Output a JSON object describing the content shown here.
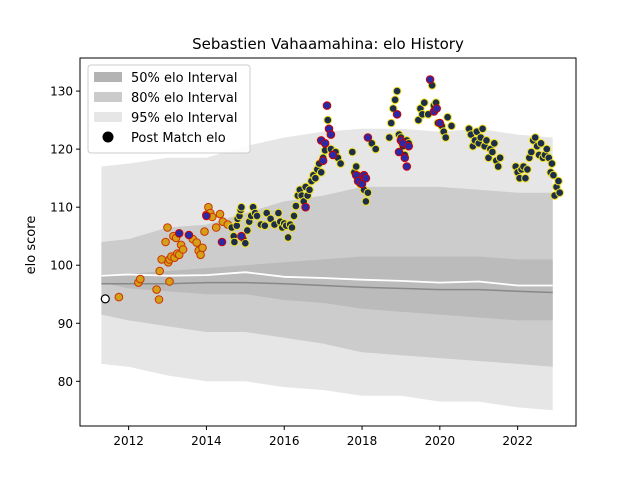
{
  "chart_data": {
    "type": "scatter",
    "title": "Sebastien Vahaamahina: elo History",
    "xlabel": "",
    "ylabel": "elo score",
    "xlim": [
      2010.75,
      2023.5
    ],
    "ylim": [
      72.3,
      135.7
    ],
    "xticks": [
      2012,
      2014,
      2016,
      2018,
      2020,
      2022
    ],
    "yticks": [
      80,
      90,
      100,
      110,
      120,
      130
    ],
    "grid": false,
    "legend": {
      "placement": "top-left",
      "entries": [
        {
          "label": "50% elo Interval",
          "color": "#b3b3b3"
        },
        {
          "label": "80% elo Interval",
          "color": "#cbcbcb"
        },
        {
          "label": "95% elo Interval",
          "color": "#e6e6e6"
        },
        {
          "label": "Post Match elo",
          "color": "#000000"
        }
      ]
    },
    "colors": {
      "band95": "#e6e6e6",
      "band80": "#cccccc",
      "band50": "#bbbbbb",
      "median_line": "#888888",
      "mean_line": "#ffffff",
      "point_fill_early": "#d4a017",
      "point_edge_early": "#cc3300",
      "point_fill_dark": "#1c2e4a",
      "point_edge_yellow": "#f0e020",
      "point_edge_red": "#cc0000",
      "point_fill_blue": "#2a2aa8",
      "first_point_fill": "#ffffff"
    },
    "bands": {
      "x": [
        2011.3,
        2012.0,
        2013.0,
        2014.0,
        2015.0,
        2016.0,
        2017.0,
        2018.0,
        2019.0,
        2020.0,
        2021.0,
        2022.0,
        2022.9
      ],
      "p95_upper": [
        117.0,
        117.5,
        118.5,
        118.5,
        120.5,
        122.0,
        123.0,
        123.5,
        123.5,
        123.0,
        123.5,
        122.5,
        122.0
      ],
      "p95_lower": [
        83.0,
        82.5,
        81.0,
        80.0,
        80.0,
        79.0,
        78.5,
        77.5,
        77.5,
        76.5,
        76.5,
        75.5,
        75.0
      ],
      "p80_upper": [
        104.0,
        104.5,
        106.5,
        107.0,
        109.0,
        111.0,
        112.0,
        113.5,
        113.5,
        113.5,
        113.0,
        112.5,
        112.5
      ],
      "p80_lower": [
        91.5,
        90.5,
        89.5,
        88.5,
        88.5,
        87.5,
        86.5,
        85.0,
        84.5,
        84.0,
        83.5,
        83.0,
        82.5
      ],
      "p50_upper": [
        98.5,
        98.5,
        99.0,
        99.5,
        100.0,
        100.5,
        101.0,
        101.5,
        101.5,
        101.5,
        101.5,
        101.0,
        101.0
      ],
      "p50_lower": [
        97.0,
        96.0,
        95.5,
        95.0,
        95.0,
        94.0,
        93.5,
        92.5,
        92.0,
        91.5,
        91.0,
        90.5,
        90.5
      ],
      "median": [
        96.8,
        96.8,
        96.8,
        97.0,
        97.0,
        96.8,
        96.5,
        96.2,
        96.0,
        95.8,
        95.8,
        95.5,
        95.3
      ],
      "mean": [
        98.2,
        98.4,
        98.2,
        98.3,
        98.8,
        98.0,
        97.8,
        97.5,
        97.3,
        97.0,
        97.2,
        96.5,
        96.5
      ]
    },
    "first_point": {
      "x": 2011.4,
      "y": 94.2
    },
    "series": [
      {
        "group": "early",
        "points": [
          [
            2011.75,
            94.5
          ],
          [
            2012.25,
            97.0
          ],
          [
            2012.3,
            97.6
          ],
          [
            2012.72,
            95.8
          ],
          [
            2012.78,
            94.1
          ],
          [
            2012.8,
            99.0
          ],
          [
            2012.85,
            101.0
          ],
          [
            2012.95,
            104.0
          ],
          [
            2013.0,
            106.5
          ],
          [
            2013.02,
            100.5
          ],
          [
            2013.05,
            101.0
          ],
          [
            2013.1,
            101.5
          ],
          [
            2013.15,
            105.0
          ],
          [
            2013.18,
            101.3
          ],
          [
            2013.22,
            104.7
          ],
          [
            2013.25,
            102.0
          ],
          [
            2013.3,
            101.8
          ],
          [
            2013.35,
            103.5
          ],
          [
            2013.05,
            97.2
          ],
          [
            2013.4,
            102.7
          ],
          [
            2013.65,
            104.5
          ],
          [
            2013.75,
            103.9
          ],
          [
            2013.8,
            102.5
          ],
          [
            2013.85,
            101.8
          ],
          [
            2013.9,
            103.0
          ],
          [
            2013.95,
            105.8
          ],
          [
            2014.0,
            108.7
          ],
          [
            2014.05,
            110.0
          ],
          [
            2014.1,
            109.0
          ],
          [
            2014.15,
            108.3
          ],
          [
            2014.25,
            106.5
          ],
          [
            2014.35,
            108.8
          ],
          [
            2014.42,
            107.5
          ],
          [
            2014.55,
            107.0
          ]
        ]
      },
      {
        "group": "mid_dark",
        "points": [
          [
            2014.65,
            106.5
          ],
          [
            2014.7,
            105.0
          ],
          [
            2014.72,
            104.0
          ],
          [
            2014.78,
            106.8
          ],
          [
            2014.8,
            108.0
          ],
          [
            2014.85,
            108.5
          ],
          [
            2014.88,
            109.5
          ],
          [
            2014.9,
            110.0
          ],
          [
            2014.95,
            104.5
          ],
          [
            2015.0,
            103.8
          ],
          [
            2015.05,
            106.0
          ],
          [
            2015.1,
            107.5
          ],
          [
            2015.15,
            108.5
          ],
          [
            2015.2,
            110.0
          ],
          [
            2015.25,
            109.0
          ],
          [
            2015.3,
            108.5
          ],
          [
            2015.4,
            107.0
          ],
          [
            2015.5,
            106.8
          ],
          [
            2015.55,
            109.0
          ],
          [
            2015.65,
            108.0
          ],
          [
            2015.75,
            107.0
          ],
          [
            2015.85,
            109.0
          ],
          [
            2015.9,
            107.5
          ],
          [
            2015.95,
            106.5
          ],
          [
            2016.0,
            107.2
          ],
          [
            2016.05,
            106.8
          ],
          [
            2016.1,
            104.8
          ],
          [
            2016.15,
            107.0
          ],
          [
            2016.2,
            106.5
          ],
          [
            2016.25,
            108.5
          ],
          [
            2016.3,
            110.2
          ],
          [
            2016.35,
            112.0
          ],
          [
            2016.4,
            113.0
          ],
          [
            2016.45,
            112.0
          ],
          [
            2016.5,
            111.0
          ],
          [
            2016.55,
            113.5
          ],
          [
            2016.6,
            112.0
          ],
          [
            2016.65,
            113.0
          ],
          [
            2016.7,
            114.5
          ],
          [
            2016.75,
            115.5
          ],
          [
            2016.8,
            115.0
          ],
          [
            2016.85,
            116.5
          ],
          [
            2016.9,
            117.5
          ],
          [
            2016.95,
            116.0
          ],
          [
            2017.0,
            118.5
          ],
          [
            2017.05,
            119.8
          ],
          [
            2017.12,
            125.0
          ],
          [
            2017.2,
            120.0
          ],
          [
            2017.28,
            119.0
          ],
          [
            2017.32,
            119.5
          ],
          [
            2017.38,
            118.5
          ],
          [
            2017.45,
            117.5
          ],
          [
            2017.75,
            119.5
          ],
          [
            2017.8,
            116.0
          ],
          [
            2017.85,
            117.0
          ],
          [
            2017.9,
            115.5
          ],
          [
            2017.95,
            114.0
          ],
          [
            2018.05,
            113.0
          ],
          [
            2018.1,
            111.0
          ],
          [
            2018.15,
            112.5
          ],
          [
            2018.25,
            121.0
          ],
          [
            2018.35,
            120.0
          ],
          [
            2018.7,
            122.0
          ],
          [
            2018.75,
            124.5
          ],
          [
            2018.8,
            127.0
          ],
          [
            2018.85,
            128.5
          ],
          [
            2018.9,
            130.0
          ],
          [
            2018.95,
            122.5
          ],
          [
            2019.0,
            122.0
          ],
          [
            2019.05,
            120.5
          ],
          [
            2019.1,
            119.0
          ],
          [
            2019.15,
            121.5
          ],
          [
            2019.2,
            121.0
          ],
          [
            2019.45,
            125.0
          ],
          [
            2019.5,
            127.0
          ],
          [
            2019.55,
            126.0
          ],
          [
            2019.6,
            128.0
          ],
          [
            2019.7,
            126.0
          ],
          [
            2019.8,
            131.0
          ],
          [
            2019.85,
            127.5
          ],
          [
            2019.9,
            128.0
          ],
          [
            2019.95,
            124.5
          ],
          [
            2020.05,
            124.0
          ],
          [
            2020.1,
            123.0
          ],
          [
            2020.15,
            122.0
          ],
          [
            2020.2,
            125.5
          ],
          [
            2020.3,
            124.0
          ],
          [
            2020.75,
            123.5
          ],
          [
            2020.8,
            122.5
          ],
          [
            2020.85,
            120.5
          ],
          [
            2020.9,
            121.5
          ],
          [
            2020.95,
            123.0
          ],
          [
            2021.0,
            121.0
          ],
          [
            2021.05,
            122.0
          ],
          [
            2021.1,
            123.5
          ],
          [
            2021.15,
            120.5
          ],
          [
            2021.2,
            121.5
          ],
          [
            2021.25,
            118.5
          ],
          [
            2021.3,
            120.0
          ],
          [
            2021.35,
            119.5
          ],
          [
            2021.4,
            121.0
          ],
          [
            2021.45,
            118.0
          ],
          [
            2021.5,
            117.0
          ],
          [
            2021.55,
            118.5
          ],
          [
            2021.95,
            117.0
          ],
          [
            2022.0,
            116.0
          ],
          [
            2022.05,
            115.0
          ],
          [
            2022.1,
            116.5
          ],
          [
            2022.15,
            117.0
          ],
          [
            2022.2,
            115.0
          ],
          [
            2022.25,
            116.5
          ],
          [
            2022.3,
            118.5
          ],
          [
            2022.35,
            119.5
          ],
          [
            2022.4,
            121.5
          ],
          [
            2022.45,
            122.0
          ],
          [
            2022.5,
            120.5
          ],
          [
            2022.55,
            119.0
          ],
          [
            2022.6,
            121.0
          ],
          [
            2022.65,
            118.5
          ],
          [
            2022.7,
            119.0
          ],
          [
            2022.75,
            120.0
          ],
          [
            2022.8,
            118.5
          ],
          [
            2022.85,
            116.0
          ],
          [
            2022.88,
            117.5
          ],
          [
            2022.92,
            115.5
          ],
          [
            2022.95,
            112.0
          ],
          [
            2023.0,
            113.5
          ],
          [
            2023.05,
            114.5
          ],
          [
            2023.08,
            112.5
          ]
        ]
      },
      {
        "group": "highlight_red",
        "points": [
          [
            2013.3,
            105.5
          ],
          [
            2013.55,
            105.2
          ],
          [
            2014.0,
            108.5
          ],
          [
            2014.4,
            104.0
          ],
          [
            2014.9,
            105.0
          ],
          [
            2016.55,
            110.0
          ],
          [
            2016.95,
            121.5
          ],
          [
            2017.0,
            118.0
          ],
          [
            2017.05,
            121.0
          ],
          [
            2017.1,
            127.5
          ],
          [
            2017.15,
            123.5
          ],
          [
            2017.2,
            122.5
          ],
          [
            2017.25,
            119.0
          ],
          [
            2017.85,
            115.5
          ],
          [
            2017.9,
            114.5
          ],
          [
            2018.0,
            114.0
          ],
          [
            2018.05,
            115.5
          ],
          [
            2018.1,
            115.0
          ],
          [
            2018.15,
            122.0
          ],
          [
            2018.9,
            126.0
          ],
          [
            2018.95,
            119.5
          ],
          [
            2019.0,
            121.5
          ],
          [
            2019.05,
            121.0
          ],
          [
            2019.1,
            118.5
          ],
          [
            2019.15,
            117.0
          ],
          [
            2019.2,
            120.5
          ],
          [
            2019.75,
            132.0
          ],
          [
            2019.85,
            126.5
          ],
          [
            2019.92,
            127.0
          ],
          [
            2020.0,
            124.5
          ]
        ]
      }
    ]
  }
}
